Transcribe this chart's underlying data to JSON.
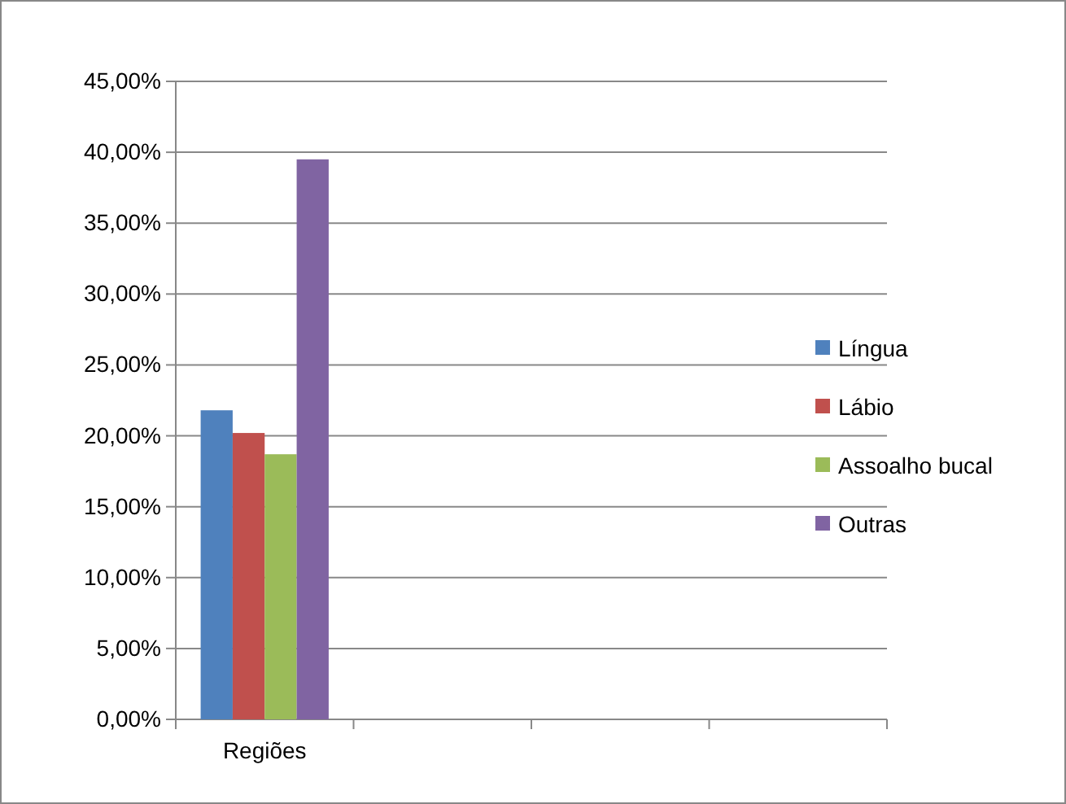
{
  "chart_data": {
    "type": "bar",
    "categories": [
      "Regiões",
      null,
      null,
      null
    ],
    "series": [
      {
        "name": "Língua",
        "color": "#4f81bd",
        "values": [
          21.8,
          null,
          null,
          null
        ]
      },
      {
        "name": "Lábio",
        "color": "#c0504d",
        "values": [
          20.2,
          null,
          null,
          null
        ]
      },
      {
        "name": "Assoalho bucal",
        "color": "#9bbb59",
        "values": [
          18.7,
          null,
          null,
          null
        ]
      },
      {
        "name": "Outras",
        "color": "#8064a2",
        "values": [
          39.5,
          null,
          null,
          null
        ]
      }
    ],
    "ylim": [
      0,
      45
    ],
    "yticks": [
      {
        "value": 0,
        "label": "0,00%"
      },
      {
        "value": 5,
        "label": "5,00%"
      },
      {
        "value": 10,
        "label": "10,00%"
      },
      {
        "value": 15,
        "label": "15,00%"
      },
      {
        "value": 20,
        "label": "20,00%"
      },
      {
        "value": 25,
        "label": "25,00%"
      },
      {
        "value": 30,
        "label": "30,00%"
      },
      {
        "value": 35,
        "label": "35,00%"
      },
      {
        "value": 40,
        "label": "40,00%"
      },
      {
        "value": 45,
        "label": "45,00%"
      }
    ],
    "grid": "y",
    "legend": "right"
  }
}
